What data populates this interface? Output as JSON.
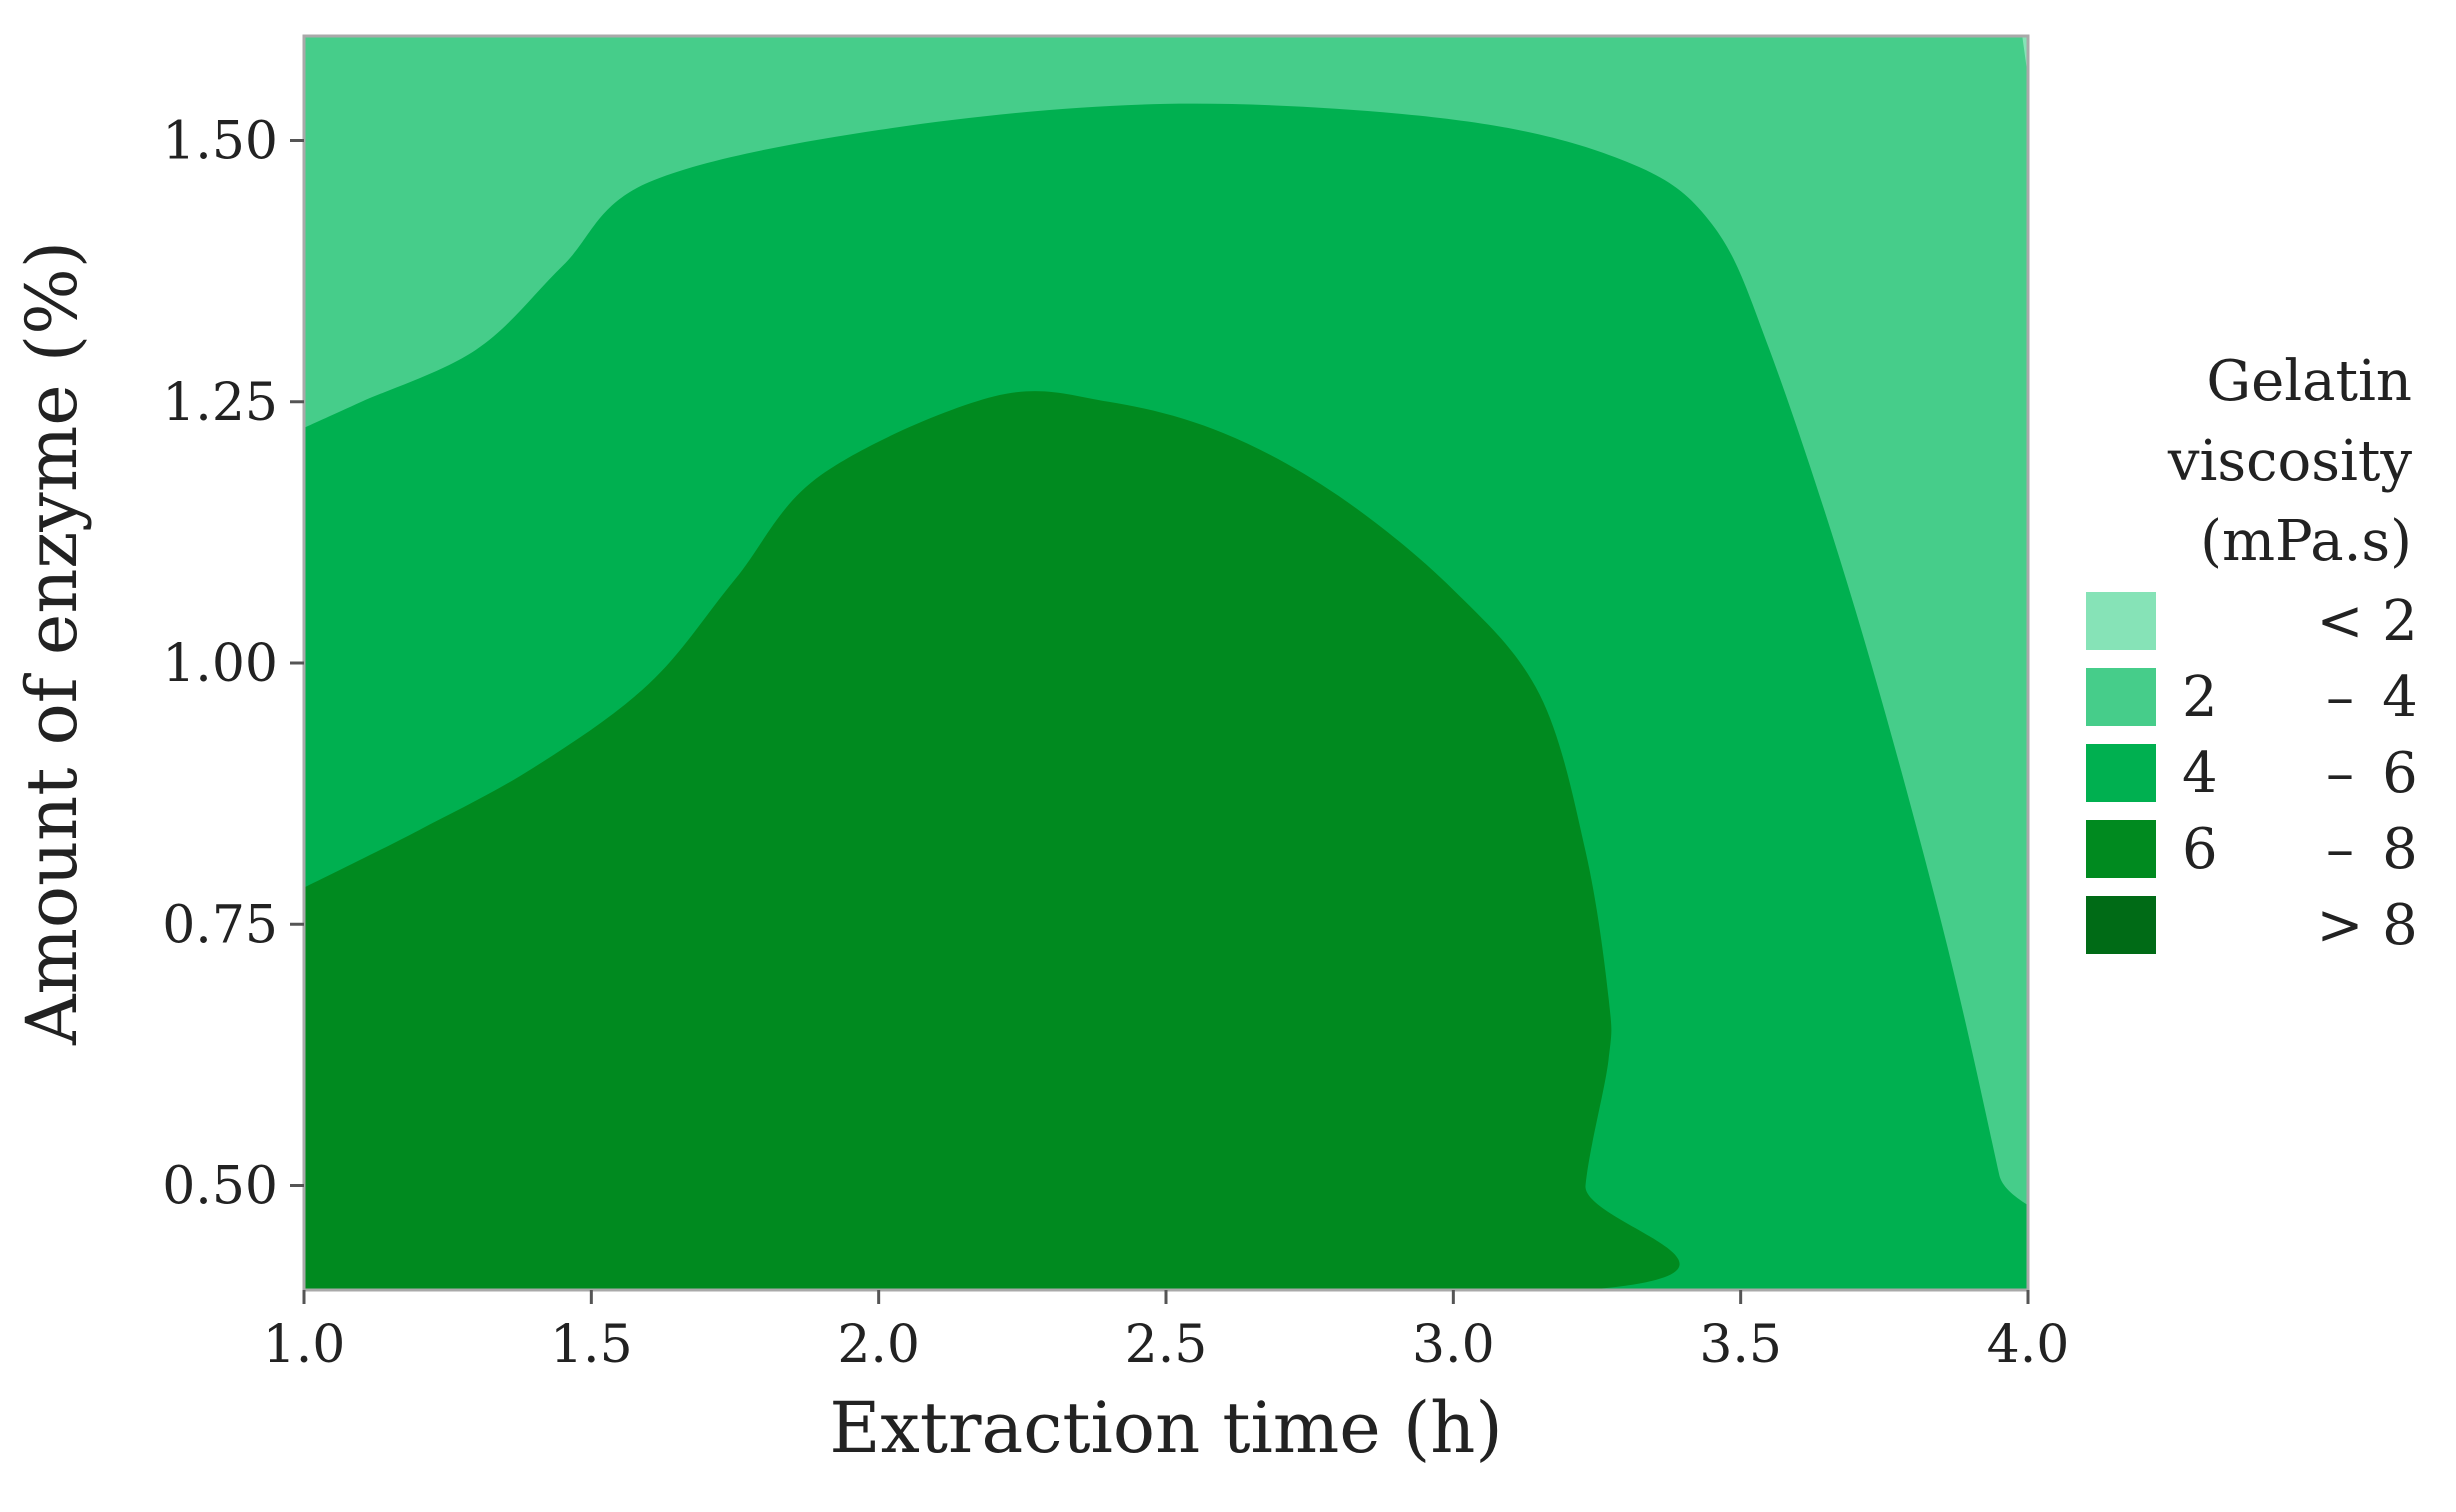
{
  "chart_data": {
    "type": "contour",
    "xlabel": "Extraction time (h)",
    "ylabel": "Amount of enzyme (%)",
    "xlim": [
      1.0,
      4.0
    ],
    "ylim": [
      0.4,
      1.6
    ],
    "x_ticks": [
      1.0,
      1.5,
      2.0,
      2.5,
      3.0,
      3.5,
      4.0
    ],
    "x_tick_labels": [
      "1.0",
      "1.5",
      "2.0",
      "2.5",
      "3.0",
      "3.5",
      "4.0"
    ],
    "y_ticks": [
      0.5,
      0.75,
      1.0,
      1.25,
      1.5
    ],
    "y_tick_labels": [
      "0.50",
      "0.75",
      "1.00",
      "1.25",
      "1.50"
    ],
    "legend": {
      "title_lines": [
        "Gelatin",
        "viscosity",
        "(mPa.s)"
      ],
      "placement": "right",
      "entries": [
        {
          "low": "",
          "sep": "<",
          "high": "2",
          "color": "#86e3b7"
        },
        {
          "low": "2",
          "sep": "–",
          "high": "4",
          "color": "#46cd8a"
        },
        {
          "low": "4",
          "sep": "–",
          "high": "6",
          "color": "#00b050"
        },
        {
          "low": "6",
          "sep": "–",
          "high": "8",
          "color": "#008a1f"
        },
        {
          "low": "",
          "sep": ">",
          "high": "8",
          "color": "#006b16"
        }
      ]
    },
    "regions": [
      {
        "range": "2-4",
        "color": "#46cd8a",
        "boundary": [
          [
            1.0,
            0.4
          ],
          [
            4.0,
            0.4
          ],
          [
            4.0,
            1.6
          ],
          [
            1.0,
            1.6
          ]
        ]
      },
      {
        "range": "4-6",
        "color": "#00b050",
        "boundary": [
          [
            1.0,
            0.4
          ],
          [
            3.99,
            0.4
          ],
          [
            3.95,
            0.51
          ],
          [
            3.85,
            0.75
          ],
          [
            3.7,
            1.05
          ],
          [
            3.55,
            1.3
          ],
          [
            3.45,
            1.42
          ],
          [
            3.3,
            1.48
          ],
          [
            3.0,
            1.52
          ],
          [
            2.5,
            1.535
          ],
          [
            2.0,
            1.51
          ],
          [
            1.6,
            1.46
          ],
          [
            1.45,
            1.38
          ],
          [
            1.3,
            1.3
          ],
          [
            1.1,
            1.25
          ],
          [
            1.0,
            1.225
          ]
        ]
      },
      {
        "range": "6-8",
        "color": "#008a1f",
        "boundary": [
          [
            1.0,
            0.4
          ],
          [
            3.23,
            0.4
          ],
          [
            3.23,
            0.5
          ],
          [
            3.27,
            0.62
          ],
          [
            3.27,
            0.68
          ],
          [
            3.23,
            0.82
          ],
          [
            3.15,
            0.97
          ],
          [
            3.0,
            1.07
          ],
          [
            2.8,
            1.16
          ],
          [
            2.6,
            1.22
          ],
          [
            2.4,
            1.25
          ],
          [
            2.2,
            1.255
          ],
          [
            1.9,
            1.18
          ],
          [
            1.75,
            1.08
          ],
          [
            1.6,
            0.98
          ],
          [
            1.4,
            0.9
          ],
          [
            1.2,
            0.84
          ],
          [
            1.0,
            0.785
          ]
        ]
      }
    ]
  }
}
